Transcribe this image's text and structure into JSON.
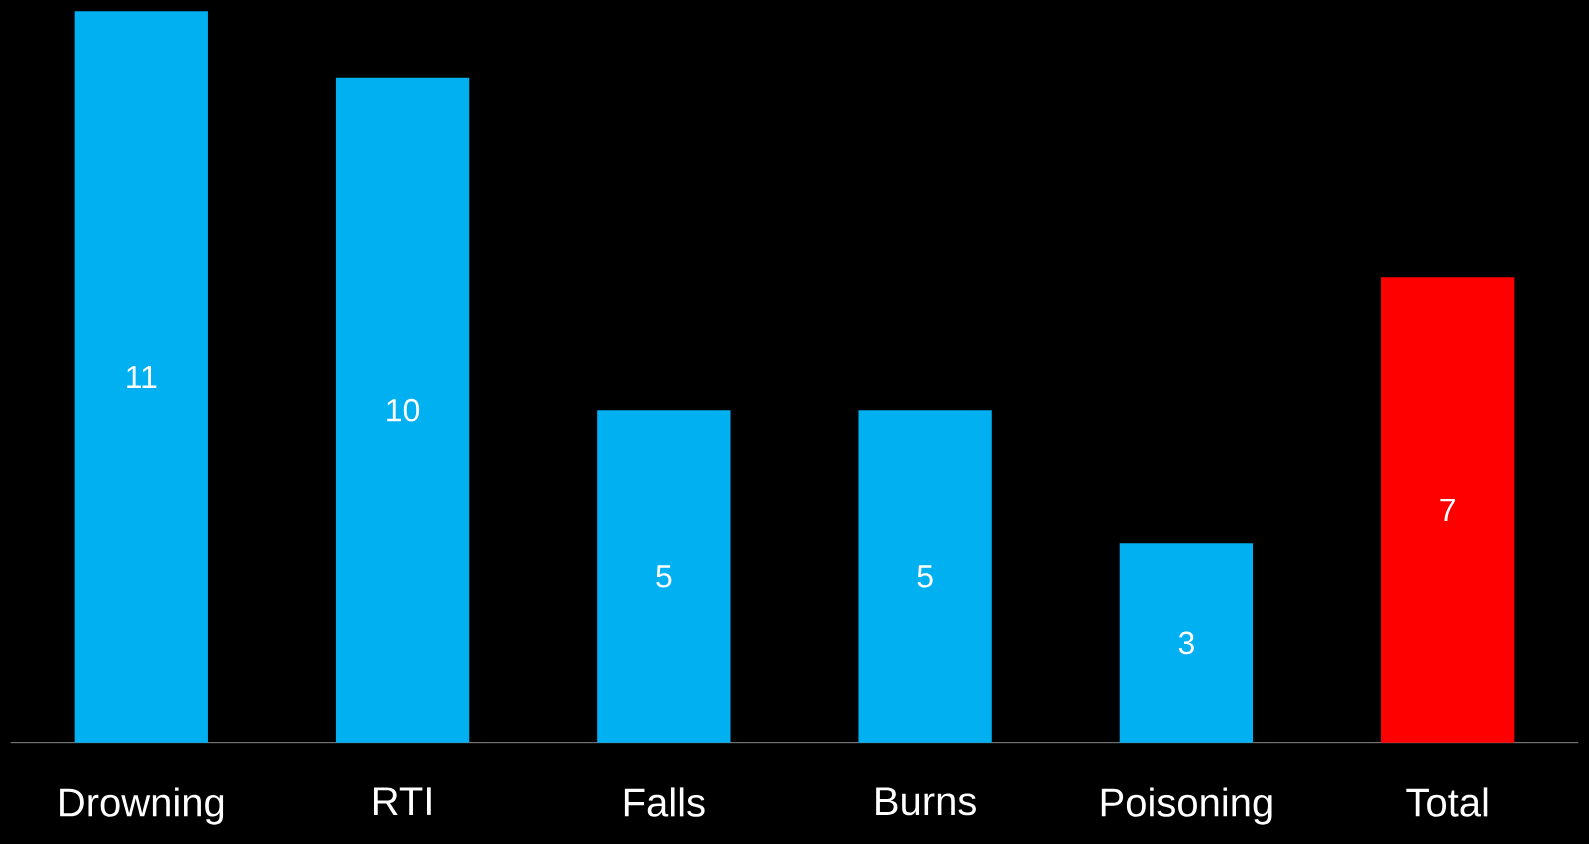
{
  "chart_data": {
    "type": "bar",
    "categories": [
      "Drowning",
      "RTI",
      "Falls",
      "Burns",
      "Poisoning",
      "Total"
    ],
    "values": [
      11,
      10,
      5,
      5,
      3,
      7
    ],
    "colors": [
      "#00b0f0",
      "#00b0f0",
      "#00b0f0",
      "#00b0f0",
      "#00b0f0",
      "#ff0000"
    ],
    "data_labels": true
  }
}
